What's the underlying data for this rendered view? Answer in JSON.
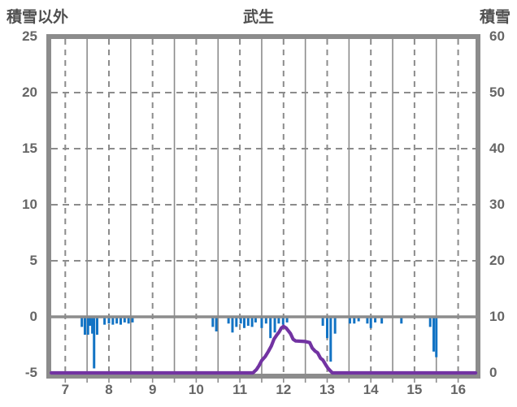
{
  "header": {
    "left_axis_title": "積雪以外",
    "chart_title": "武生",
    "right_axis_title": "積雪"
  },
  "colors": {
    "bar": "#1273C4",
    "line": "#7233A2",
    "frame": "#8C8C8C",
    "grid": "#8C8C8C",
    "zero_line": "#8C8C8C",
    "text": "#666666",
    "background": "#FFFFFF"
  },
  "chart_data": {
    "type": "bar",
    "title": "武生",
    "x_axis": {
      "ticks": [
        7,
        8,
        9,
        10,
        11,
        12,
        13,
        14,
        15,
        16
      ],
      "range": [
        6.68,
        16.4
      ],
      "solid_gridlines_at": [
        7.5,
        8.5,
        9.5,
        10.5,
        11.5,
        12.5,
        13.5,
        14.5,
        15.5
      ],
      "dashed_gridlines_at": [
        7,
        8,
        9,
        10,
        11,
        12,
        13,
        14,
        15,
        16
      ]
    },
    "left_axis": {
      "title": "積雪以外",
      "ticks": [
        25,
        20,
        15,
        10,
        5,
        0,
        -5
      ],
      "range": [
        -5,
        25
      ],
      "dashed_gridline_values": [
        20,
        15,
        10,
        5
      ],
      "zero_line_value": 0
    },
    "right_axis": {
      "title": "積雪",
      "ticks": [
        60,
        50,
        40,
        30,
        20,
        10,
        0
      ],
      "range": [
        0,
        60
      ]
    },
    "series": [
      {
        "name": "積雪以外",
        "type": "bar",
        "axis": "left",
        "color": "#1273C4",
        "points": [
          [
            7.38,
            -0.9
          ],
          [
            7.45,
            -1.6
          ],
          [
            7.52,
            -1.6
          ],
          [
            7.57,
            -0.8
          ],
          [
            7.62,
            -1.5
          ],
          [
            7.66,
            -4.6
          ],
          [
            7.73,
            -1.6
          ],
          [
            7.9,
            -0.7
          ],
          [
            8.0,
            -0.6
          ],
          [
            8.09,
            -0.7
          ],
          [
            8.18,
            -0.6
          ],
          [
            8.27,
            -0.7
          ],
          [
            8.36,
            -0.5
          ],
          [
            8.45,
            -0.6
          ],
          [
            8.54,
            -0.5
          ],
          [
            10.38,
            -0.9
          ],
          [
            10.46,
            -1.3
          ],
          [
            10.74,
            -0.6
          ],
          [
            10.83,
            -1.4
          ],
          [
            10.92,
            -0.9
          ],
          [
            11.02,
            -0.6
          ],
          [
            11.1,
            -1.0
          ],
          [
            11.19,
            -0.8
          ],
          [
            11.28,
            -0.9
          ],
          [
            11.36,
            -0.5
          ],
          [
            11.5,
            -1.0
          ],
          [
            11.6,
            -0.6
          ],
          [
            11.7,
            -1.9
          ],
          [
            11.8,
            -1.4
          ],
          [
            11.89,
            -0.6
          ],
          [
            11.99,
            -0.7
          ],
          [
            12.08,
            -0.5
          ],
          [
            12.9,
            -0.8
          ],
          [
            13.0,
            -1.9
          ],
          [
            13.08,
            -4.0
          ],
          [
            13.18,
            -1.5
          ],
          [
            13.52,
            -0.6
          ],
          [
            13.62,
            -0.6
          ],
          [
            13.72,
            -0.4
          ],
          [
            13.92,
            -0.6
          ],
          [
            14.0,
            -1.0
          ],
          [
            14.1,
            -0.5
          ],
          [
            14.25,
            -0.6
          ],
          [
            14.7,
            -0.6
          ],
          [
            15.36,
            -0.9
          ],
          [
            15.44,
            -3.1
          ],
          [
            15.5,
            -3.6
          ]
        ]
      },
      {
        "name": "積雪",
        "type": "line",
        "axis": "right",
        "color": "#7233A2",
        "points": [
          [
            6.68,
            0
          ],
          [
            11.3,
            0
          ],
          [
            11.38,
            0.6
          ],
          [
            11.44,
            1.3
          ],
          [
            11.5,
            2.2
          ],
          [
            11.58,
            2.9
          ],
          [
            11.65,
            3.8
          ],
          [
            11.72,
            4.8
          ],
          [
            11.78,
            6.0
          ],
          [
            11.85,
            6.8
          ],
          [
            11.9,
            7.3
          ],
          [
            11.95,
            8.0
          ],
          [
            12.0,
            8.3
          ],
          [
            12.06,
            8.0
          ],
          [
            12.1,
            7.6
          ],
          [
            12.16,
            7.0
          ],
          [
            12.22,
            6.0
          ],
          [
            12.28,
            5.7
          ],
          [
            12.5,
            5.6
          ],
          [
            12.6,
            5.4
          ],
          [
            12.66,
            4.4
          ],
          [
            12.72,
            3.9
          ],
          [
            12.78,
            3.6
          ],
          [
            12.85,
            2.6
          ],
          [
            12.9,
            2.3
          ],
          [
            12.96,
            1.5
          ],
          [
            13.02,
            0.8
          ],
          [
            13.08,
            0.3
          ],
          [
            13.12,
            0
          ],
          [
            16.4,
            0
          ]
        ]
      }
    ]
  }
}
